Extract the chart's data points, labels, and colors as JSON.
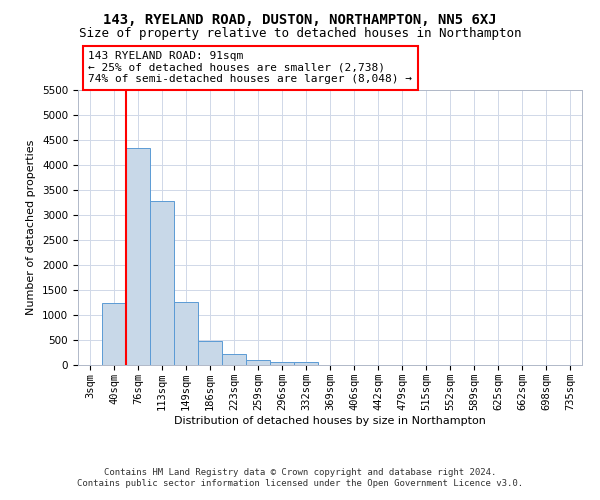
{
  "title": "143, RYELAND ROAD, DUSTON, NORTHAMPTON, NN5 6XJ",
  "subtitle": "Size of property relative to detached houses in Northampton",
  "xlabel": "Distribution of detached houses by size in Northampton",
  "ylabel": "Number of detached properties",
  "footer_line1": "Contains HM Land Registry data © Crown copyright and database right 2024.",
  "footer_line2": "Contains public sector information licensed under the Open Government Licence v3.0.",
  "annotation_line1": "143 RYELAND ROAD: 91sqm",
  "annotation_line2": "← 25% of detached houses are smaller (2,738)",
  "annotation_line3": "74% of semi-detached houses are larger (8,048) →",
  "bar_labels": [
    "3sqm",
    "40sqm",
    "76sqm",
    "113sqm",
    "149sqm",
    "186sqm",
    "223sqm",
    "259sqm",
    "296sqm",
    "332sqm",
    "369sqm",
    "406sqm",
    "442sqm",
    "479sqm",
    "515sqm",
    "552sqm",
    "589sqm",
    "625sqm",
    "662sqm",
    "698sqm",
    "735sqm"
  ],
  "bar_values": [
    0,
    1250,
    4350,
    3280,
    1270,
    490,
    220,
    95,
    65,
    55,
    0,
    0,
    0,
    0,
    0,
    0,
    0,
    0,
    0,
    0,
    0
  ],
  "bar_color": "#c8d8e8",
  "bar_edgecolor": "#5b9bd5",
  "bar_width": 1.0,
  "red_line_x": 2.0,
  "ylim": [
    0,
    5500
  ],
  "yticks": [
    0,
    500,
    1000,
    1500,
    2000,
    2500,
    3000,
    3500,
    4000,
    4500,
    5000,
    5500
  ],
  "background_color": "#ffffff",
  "grid_color": "#d0d8e8",
  "title_fontsize": 10,
  "subtitle_fontsize": 9,
  "axis_label_fontsize": 8,
  "tick_fontsize": 7.5,
  "annotation_fontsize": 8,
  "footer_fontsize": 6.5
}
